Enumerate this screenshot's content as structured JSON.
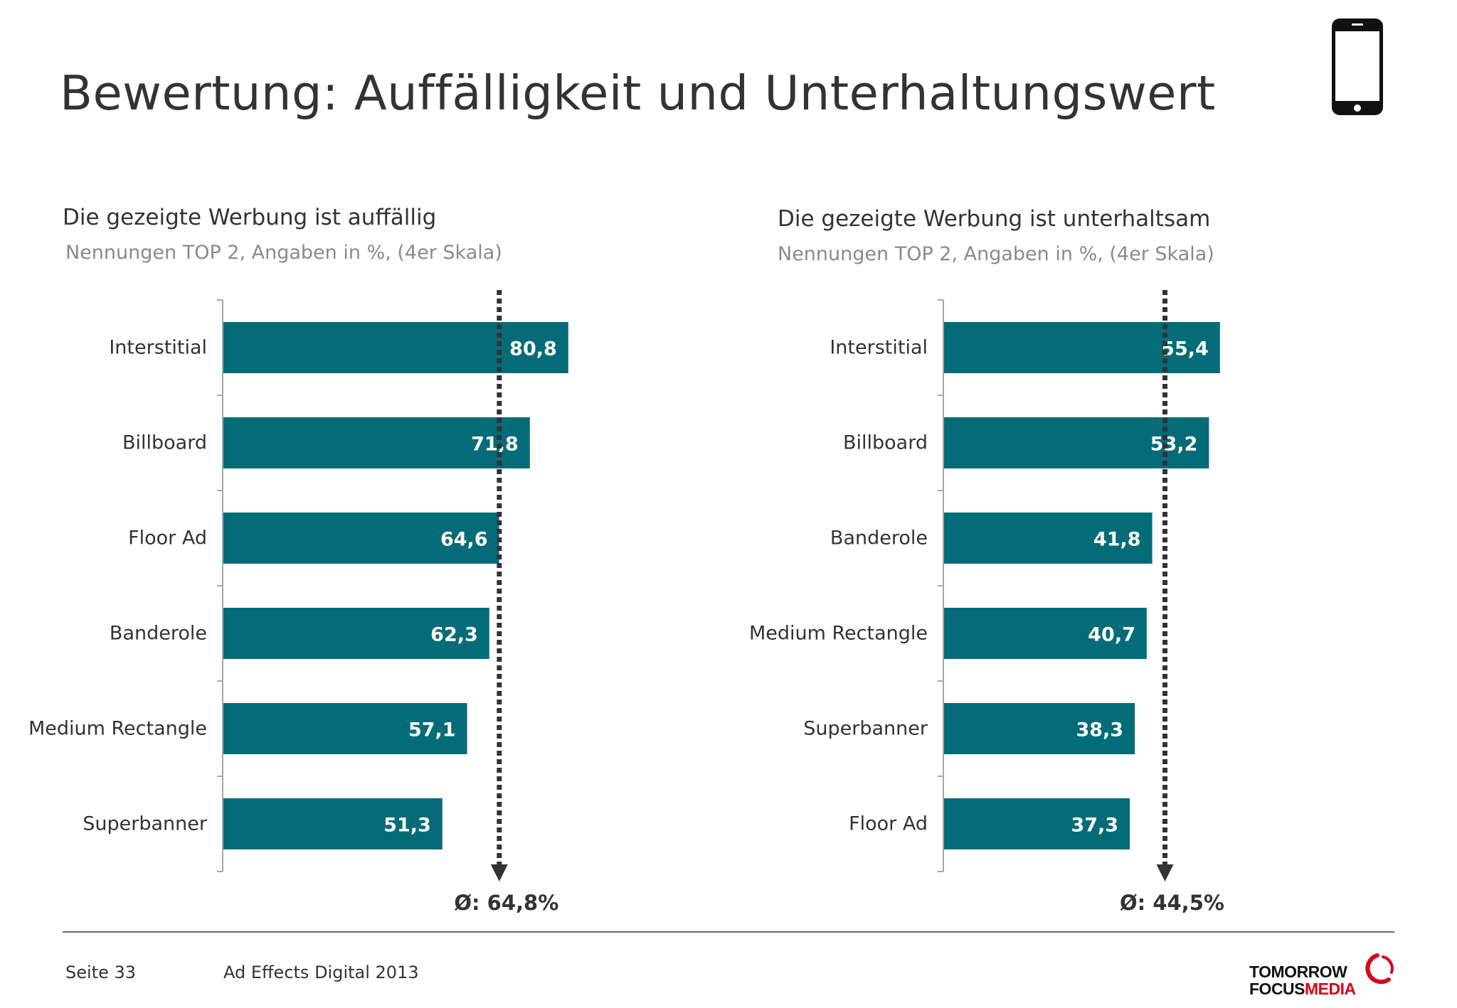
{
  "title": "Bewertung: Auffälligkeit und Unterhaltungswert",
  "colors": {
    "bar": "#046c78",
    "text": "#333333",
    "subtitle": "#8a8a8a",
    "avg_line": "#333333",
    "logo_red": "#d9001b"
  },
  "icons": {
    "device": "smartphone-icon"
  },
  "chart_data": [
    {
      "type": "bar",
      "orientation": "horizontal",
      "title": "Die gezeigte Werbung ist auffällig",
      "subtitle": "Nennungen TOP 2, Angaben in %, (4er Skala)",
      "categories": [
        "Interstitial",
        "Billboard",
        "Floor Ad",
        "Banderole",
        "Medium Rectangle",
        "Superbanner"
      ],
      "values": [
        80.8,
        71.8,
        64.6,
        62.3,
        57.1,
        51.3
      ],
      "value_labels": [
        "80,8",
        "71,8",
        "64,6",
        "62,3",
        "57,1",
        "51,3"
      ],
      "average": 64.8,
      "average_label": "Ø: 64,8%",
      "xlim": [
        0,
        100
      ]
    },
    {
      "type": "bar",
      "orientation": "horizontal",
      "title": "Die gezeigte Werbung ist unterhaltsam",
      "subtitle": "Nennungen TOP 2, Angaben in %, (4er Skala)",
      "categories": [
        "Interstitial",
        "Billboard",
        "Banderole",
        "Medium Rectangle",
        "Superbanner",
        "Floor Ad"
      ],
      "values": [
        55.4,
        53.2,
        41.8,
        40.7,
        38.3,
        37.3
      ],
      "value_labels": [
        "55,4",
        "53,2",
        "41,8",
        "40,7",
        "38,3",
        "37,3"
      ],
      "average": 44.5,
      "average_label": "Ø: 44,5%",
      "xlim": [
        0,
        70
      ]
    }
  ],
  "footer": {
    "page": "Seite 33",
    "source": "Ad Effects Digital 2013"
  },
  "logo": {
    "line1": "TOMORROW",
    "line2a": "FOCUS",
    "line2b": "MEDIA"
  }
}
